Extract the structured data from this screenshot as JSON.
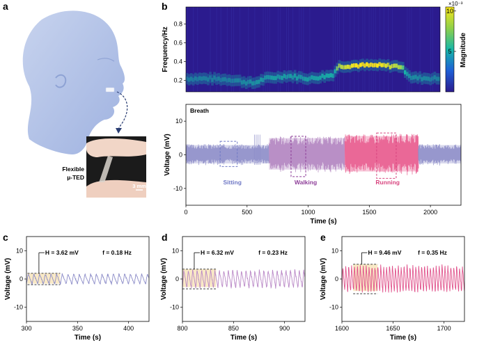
{
  "panels": {
    "a": {
      "letter": "a",
      "device_label_line1": "Flexible",
      "device_label_line2": "µ-TED",
      "scale_bar": "3 mm"
    },
    "b": {
      "letter": "b"
    },
    "c": {
      "letter": "c"
    },
    "d": {
      "letter": "d"
    },
    "e": {
      "letter": "e"
    }
  },
  "chart_data": [
    {
      "id": "b-spectrogram",
      "type": "heatmap",
      "ylabel": "Frequency/Hz",
      "yticks": [
        "0.2",
        "0.4",
        "0.6",
        "0.8"
      ],
      "ylim": [
        0.08,
        0.98
      ],
      "xlim": [
        0,
        2250
      ],
      "colorbar": {
        "label": "Magnitude",
        "exponent": "×10⁻³",
        "ticks": [
          "10",
          "5"
        ],
        "range": [
          0,
          10.5
        ]
      },
      "colors": {
        "low": "#2b1b8e",
        "mid": "#17b7a8",
        "high": "#f7e61a"
      },
      "ridge": {
        "x": [
          0,
          200,
          400,
          600,
          700,
          900,
          1100,
          1300,
          1350,
          1500,
          1700,
          1900,
          2000,
          2250
        ],
        "y": [
          0.22,
          0.22,
          0.21,
          0.17,
          0.22,
          0.25,
          0.22,
          0.26,
          0.35,
          0.36,
          0.36,
          0.35,
          0.23,
          0.22
        ],
        "peak_magnitude": [
          4,
          4,
          4,
          5,
          6,
          6,
          6,
          7,
          9,
          10,
          10,
          9,
          5,
          4
        ]
      }
    },
    {
      "id": "b-breath",
      "type": "area",
      "title": "Breath",
      "xlabel": "Time (s)",
      "ylabel": "Voltage (mV)",
      "xlim": [
        0,
        2250
      ],
      "ylim": [
        -15,
        15
      ],
      "xticks": [
        0,
        500,
        1000,
        1500,
        2000
      ],
      "yticks": [
        -10,
        0,
        10
      ],
      "regions": [
        {
          "name": "Sitting",
          "from": 0,
          "to": 680,
          "amplitude": 3.2,
          "color": "#8c8cc8"
        },
        {
          "name": "Walking",
          "from": 680,
          "to": 1300,
          "amplitude": 5.5,
          "color": "#b284bf"
        },
        {
          "name": "Running",
          "from": 1300,
          "to": 1900,
          "amplitude": 6.2,
          "color": "#e8588c"
        },
        {
          "name": "",
          "from": 1900,
          "to": 2250,
          "amplitude": 3.2,
          "color": "#8c8cc8"
        }
      ],
      "region_labels": [
        {
          "text": "Sitting",
          "x": 380,
          "color": "#6f78c5"
        },
        {
          "text": "Walking",
          "x": 980,
          "color": "#8e3f99"
        },
        {
          "text": "Running",
          "x": 1650,
          "color": "#d8457f"
        }
      ],
      "dashed_boxes": [
        {
          "from": 280,
          "to": 420,
          "ymin": -3.5,
          "ymax": 4,
          "color": "#6f78c5"
        },
        {
          "from": 860,
          "to": 980,
          "ymin": -6.5,
          "ymax": 5.5,
          "color": "#8e3f99"
        },
        {
          "from": 1560,
          "to": 1720,
          "ymin": -7,
          "ymax": 6.5,
          "color": "#d8457f"
        }
      ]
    },
    {
      "id": "c",
      "type": "line",
      "xlabel": "Time (s)",
      "ylabel": "Voltage (mV)",
      "xlim": [
        300,
        420
      ],
      "ylim": [
        -15,
        15
      ],
      "xticks": [
        300,
        350,
        400
      ],
      "yticks": [
        -10,
        0,
        10
      ],
      "frequency_hz": 0.18,
      "amplitude_mv": 3.62,
      "color": "#8c8cc8",
      "highlight": {
        "from": 301,
        "to": 333,
        "color": "#f7e3b8"
      },
      "annotations": {
        "H": "H = 3.62 mV",
        "f": "f = 0.18 Hz"
      }
    },
    {
      "id": "d",
      "type": "line",
      "xlabel": "Time (s)",
      "ylabel": "Voltage (mV)",
      "xlim": [
        800,
        920
      ],
      "ylim": [
        -15,
        15
      ],
      "xticks": [
        800,
        850,
        900
      ],
      "yticks": [
        -10,
        0,
        10
      ],
      "frequency_hz": 0.23,
      "amplitude_mv": 6.32,
      "color": "#b987c6",
      "highlight": {
        "from": 800,
        "to": 833,
        "color": "#f7e3b8"
      },
      "annotations": {
        "H": "H = 6.32 mV",
        "f": "f = 0.23 Hz"
      }
    },
    {
      "id": "e",
      "type": "line",
      "xlabel": "Time (s)",
      "ylabel": "Voltage (mV)",
      "xlim": [
        1600,
        1720
      ],
      "ylim": [
        -15,
        15
      ],
      "xticks": [
        1600,
        1650,
        1700
      ],
      "yticks": [
        -10,
        0,
        10
      ],
      "frequency_hz": 0.35,
      "amplitude_mv": 9.46,
      "color": "#e0508a",
      "highlight": {
        "from": 1611,
        "to": 1635,
        "color": "#f7e3b8"
      },
      "annotations": {
        "H": "H = 9.46 mV",
        "f": "f = 0.35 Hz"
      }
    }
  ]
}
